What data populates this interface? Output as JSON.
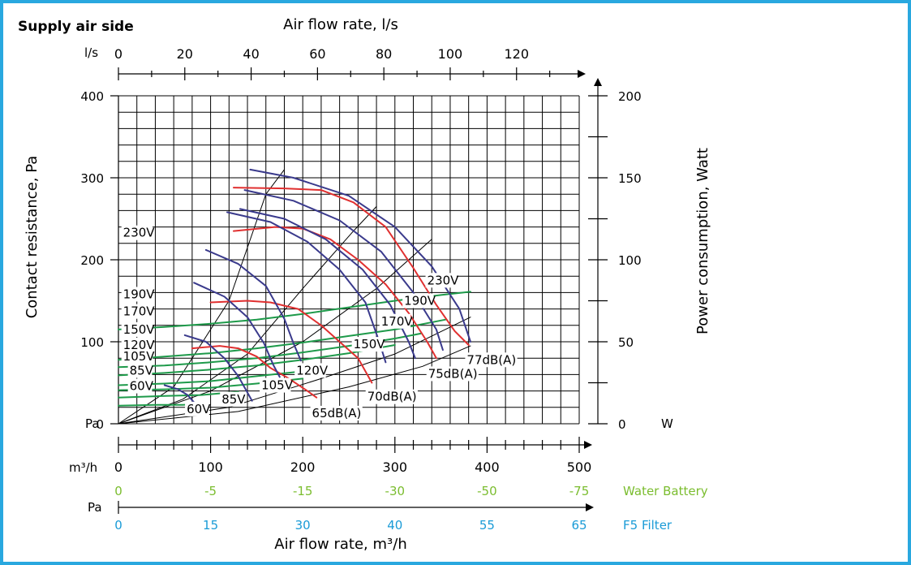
{
  "header": {
    "title": "Supply air side",
    "top_axis_title": "Air flow rate, l/s",
    "bottom_axis_title": "Air flow rate, m³/h",
    "left_axis_title": "Contact resistance, Pa",
    "right_axis_title": "Power consumption, Watt"
  },
  "colors": {
    "frame": "#29a8df",
    "fan_curve": "#3a3a8c",
    "noise_curve": "#e03030",
    "power_curve": "#1e9a4a",
    "water_battery": "#7bbd2f",
    "filter": "#1a9bd7"
  },
  "chart_data": {
    "type": "line",
    "x_unit": "m³/h",
    "y_unit": "Pa",
    "xlim": [
      0,
      500
    ],
    "ylim": [
      0,
      400
    ],
    "y2lim": [
      0,
      200
    ],
    "grid": true,
    "axes": {
      "top": {
        "unit_label": "l/s",
        "ticks": [
          "0",
          "20",
          "40",
          "60",
          "80",
          "100",
          "120"
        ]
      },
      "left": {
        "unit_label": "Pa",
        "ticks": [
          "0",
          "100",
          "200",
          "300",
          "400"
        ]
      },
      "right": {
        "unit_label": "W",
        "ticks": [
          "0",
          "50",
          "100",
          "150",
          "200"
        ]
      },
      "bottom": {
        "unit_label": "m³/h",
        "ticks": [
          "0",
          "100",
          "200",
          "300",
          "400",
          "500"
        ]
      },
      "water_battery": {
        "label": "Water Battery",
        "ticks": [
          "0",
          "-5",
          "-15",
          "-30",
          "-50",
          "-75"
        ]
      },
      "filter": {
        "unit_label": "Pa",
        "label": "F5 Filter",
        "ticks": [
          "0",
          "15",
          "30",
          "40",
          "55",
          "65"
        ]
      }
    },
    "fan_curves": [
      {
        "name": "230V",
        "points": [
          [
            143,
            310
          ],
          [
            190,
            300
          ],
          [
            250,
            278
          ],
          [
            300,
            240
          ],
          [
            340,
            192
          ],
          [
            370,
            140
          ],
          [
            382,
            100
          ]
        ]
      },
      {
        "name": "190V",
        "points": [
          [
            137,
            285
          ],
          [
            190,
            272
          ],
          [
            240,
            248
          ],
          [
            285,
            210
          ],
          [
            320,
            160
          ],
          [
            345,
            115
          ],
          [
            352,
            90
          ]
        ]
      },
      {
        "name": "170V",
        "points": [
          [
            132,
            262
          ],
          [
            180,
            250
          ],
          [
            225,
            225
          ],
          [
            265,
            188
          ],
          [
            295,
            145
          ],
          [
            315,
            100
          ],
          [
            322,
            80
          ]
        ]
      },
      {
        "name": "150V",
        "points": [
          [
            118,
            258
          ],
          [
            165,
            246
          ],
          [
            205,
            222
          ],
          [
            240,
            188
          ],
          [
            268,
            148
          ],
          [
            283,
            100
          ],
          [
            290,
            75
          ]
        ]
      },
      {
        "name": "120V",
        "points": [
          [
            95,
            212
          ],
          [
            130,
            195
          ],
          [
            160,
            168
          ],
          [
            180,
            128
          ],
          [
            190,
            98
          ],
          [
            198,
            77
          ]
        ]
      },
      {
        "name": "105V",
        "points": [
          [
            82,
            172
          ],
          [
            115,
            155
          ],
          [
            140,
            130
          ],
          [
            158,
            98
          ],
          [
            168,
            72
          ],
          [
            175,
            57
          ]
        ]
      },
      {
        "name": "85V",
        "points": [
          [
            72,
            108
          ],
          [
            95,
            100
          ],
          [
            115,
            80
          ],
          [
            130,
            58
          ],
          [
            138,
            42
          ],
          [
            145,
            28
          ]
        ]
      },
      {
        "name": "60V",
        "points": [
          [
            50,
            47
          ],
          [
            65,
            42
          ],
          [
            75,
            35
          ],
          [
            82,
            26
          ]
        ]
      }
    ],
    "noise_curves": [
      {
        "name": "77dB(A)",
        "points": [
          [
            125,
            288
          ],
          [
            180,
            287
          ],
          [
            220,
            285
          ],
          [
            255,
            270
          ],
          [
            290,
            240
          ],
          [
            320,
            190
          ],
          [
            345,
            145
          ],
          [
            365,
            113
          ],
          [
            380,
            96
          ]
        ]
      },
      {
        "name": "75dB(A)",
        "points": [
          [
            125,
            235
          ],
          [
            170,
            240
          ],
          [
            200,
            238
          ],
          [
            230,
            225
          ],
          [
            260,
            200
          ],
          [
            290,
            170
          ],
          [
            315,
            135
          ],
          [
            335,
            100
          ],
          [
            345,
            80
          ]
        ]
      },
      {
        "name": "70dB(A)",
        "points": [
          [
            100,
            148
          ],
          [
            140,
            150
          ],
          [
            165,
            148
          ],
          [
            195,
            140
          ],
          [
            220,
            120
          ],
          [
            240,
            100
          ],
          [
            260,
            80
          ],
          [
            275,
            50
          ]
        ]
      },
      {
        "name": "65dB(A)",
        "points": [
          [
            80,
            92
          ],
          [
            110,
            95
          ],
          [
            130,
            92
          ],
          [
            150,
            82
          ],
          [
            165,
            68
          ],
          [
            185,
            55
          ],
          [
            205,
            40
          ],
          [
            215,
            32
          ]
        ]
      }
    ],
    "power_curves": [
      {
        "name": "230V",
        "points": [
          [
            0,
            115
          ],
          [
            50,
            118
          ],
          [
            100,
            122
          ],
          [
            150,
            127
          ],
          [
            200,
            134
          ],
          [
            250,
            142
          ],
          [
            300,
            150
          ],
          [
            350,
            157
          ],
          [
            382,
            161
          ]
        ]
      },
      {
        "name": "190V",
        "points": [
          [
            0,
            78
          ],
          [
            50,
            82
          ],
          [
            100,
            86
          ],
          [
            150,
            92
          ],
          [
            200,
            99
          ],
          [
            250,
            107
          ],
          [
            300,
            115
          ],
          [
            355,
            127
          ]
        ]
      },
      {
        "name": "170V",
        "points": [
          [
            0,
            69
          ],
          [
            50,
            71
          ],
          [
            100,
            75
          ],
          [
            150,
            80
          ],
          [
            200,
            87
          ],
          [
            250,
            95
          ],
          [
            300,
            104
          ],
          [
            328,
            110
          ]
        ]
      },
      {
        "name": "150V",
        "points": [
          [
            0,
            59
          ],
          [
            50,
            62
          ],
          [
            100,
            66
          ],
          [
            150,
            71
          ],
          [
            200,
            78
          ],
          [
            250,
            86
          ],
          [
            300,
            96
          ]
        ]
      },
      {
        "name": "120V",
        "points": [
          [
            0,
            47
          ],
          [
            50,
            49
          ],
          [
            100,
            52
          ],
          [
            150,
            58
          ],
          [
            200,
            64
          ],
          [
            210,
            65
          ]
        ]
      },
      {
        "name": "105V",
        "points": [
          [
            0,
            41
          ],
          [
            50,
            42
          ],
          [
            100,
            44
          ],
          [
            150,
            49
          ],
          [
            200,
            55
          ]
        ]
      },
      {
        "name": "85V",
        "points": [
          [
            0,
            32
          ],
          [
            50,
            34
          ],
          [
            90,
            35
          ],
          [
            130,
            39
          ]
        ]
      },
      {
        "name": "60V",
        "points": [
          [
            0,
            22
          ],
          [
            40,
            23
          ],
          [
            70,
            23
          ],
          [
            85,
            24
          ]
        ]
      }
    ],
    "system_curves": [
      {
        "points": [
          [
            0,
            0
          ],
          [
            60,
            45
          ],
          [
            120,
            150
          ],
          [
            160,
            280
          ],
          [
            180,
            310
          ]
        ]
      },
      {
        "points": [
          [
            0,
            0
          ],
          [
            70,
            30
          ],
          [
            140,
            85
          ],
          [
            200,
            165
          ],
          [
            255,
            235
          ],
          [
            280,
            265
          ]
        ]
      },
      {
        "points": [
          [
            0,
            0
          ],
          [
            100,
            40
          ],
          [
            200,
            100
          ],
          [
            280,
            165
          ],
          [
            340,
            225
          ]
        ]
      },
      {
        "points": [
          [
            0,
            0
          ],
          [
            120,
            20
          ],
          [
            220,
            55
          ],
          [
            300,
            85
          ],
          [
            382,
            130
          ]
        ]
      },
      {
        "points": [
          [
            0,
            0
          ],
          [
            130,
            15
          ],
          [
            250,
            45
          ],
          [
            330,
            70
          ],
          [
            382,
            95
          ]
        ]
      }
    ],
    "curve_labels": [
      {
        "text": "230V",
        "x": 5,
        "y": 228,
        "anchor": "start",
        "bg": true
      },
      {
        "text": "190V",
        "x": 5,
        "y": 153,
        "anchor": "start",
        "bg": true
      },
      {
        "text": "170V",
        "x": 5,
        "y": 132,
        "anchor": "start",
        "bg": true
      },
      {
        "text": "150V",
        "x": 5,
        "y": 110,
        "anchor": "start",
        "bg": true
      },
      {
        "text": "120V",
        "x": 5,
        "y": 91,
        "anchor": "start",
        "bg": true
      },
      {
        "text": "105V",
        "x": 5,
        "y": 77,
        "anchor": "start",
        "bg": true
      },
      {
        "text": "85V",
        "x": 12,
        "y": 60,
        "anchor": "start",
        "bg": true
      },
      {
        "text": "60V",
        "x": 12,
        "y": 41,
        "anchor": "start",
        "bg": true
      },
      {
        "text": "60V",
        "x": 74,
        "y": 13,
        "anchor": "start",
        "bg": true
      },
      {
        "text": "85V",
        "x": 112,
        "y": 25,
        "anchor": "start",
        "bg": true
      },
      {
        "text": "105V",
        "x": 155,
        "y": 42,
        "anchor": "start",
        "bg": true
      },
      {
        "text": "120V",
        "x": 193,
        "y": 60,
        "anchor": "start",
        "bg": true
      },
      {
        "text": "150V",
        "x": 255,
        "y": 92,
        "anchor": "start",
        "bg": true
      },
      {
        "text": "170V",
        "x": 285,
        "y": 120,
        "anchor": "start",
        "bg": true
      },
      {
        "text": "190V",
        "x": 310,
        "y": 145,
        "anchor": "start",
        "bg": true
      },
      {
        "text": "230V",
        "x": 335,
        "y": 170,
        "anchor": "start",
        "bg": true
      },
      {
        "text": "77dB(A)",
        "x": 378,
        "y": 73,
        "anchor": "start",
        "bg": true
      },
      {
        "text": "75dB(A)",
        "x": 336,
        "y": 56,
        "anchor": "start",
        "bg": true
      },
      {
        "text": "70dB(A)",
        "x": 270,
        "y": 28,
        "anchor": "start",
        "bg": true
      },
      {
        "text": "65dB(A)",
        "x": 210,
        "y": 8,
        "anchor": "start",
        "bg": true
      }
    ]
  }
}
